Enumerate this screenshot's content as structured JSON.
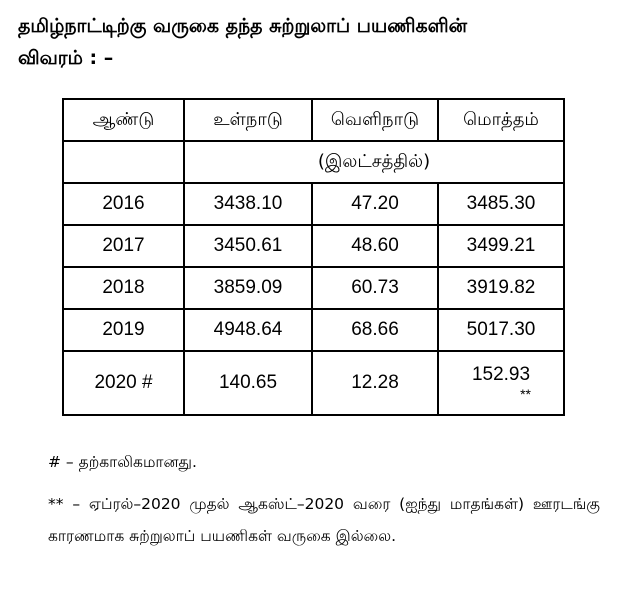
{
  "heading": {
    "line1": "தமிழ்நாட்டிற்கு வருகை தந்த சுற்றுலாப் பயணிகளின்",
    "line2": "விவரம் : –"
  },
  "table": {
    "headers": [
      "ஆண்டு",
      "உள்நாடு",
      "வெளிநாடு",
      "மொத்தம்"
    ],
    "unit": "(இலட்சத்தில்)",
    "rows": [
      {
        "year": "2016",
        "domestic": "3438.10",
        "foreign": "47.20",
        "total": "3485.30"
      },
      {
        "year": "2017",
        "domestic": "3450.61",
        "foreign": "48.60",
        "total": "3499.21"
      },
      {
        "year": "2018",
        "domestic": "3859.09",
        "foreign": "60.73",
        "total": "3919.82"
      },
      {
        "year": "2019",
        "domestic": "4948.64",
        "foreign": "68.66",
        "total": "5017.30"
      },
      {
        "year": "2020 #",
        "domestic": "140.65",
        "foreign": "12.28",
        "total": "152.93",
        "total_mark": "**"
      }
    ]
  },
  "notes": {
    "provisional": "# – தற்காலிகமானது.",
    "covid": "** – ஏப்ரல்–2020 முதல் ஆகஸ்ட்–2020 வரை (ஐந்து மாதங்கள்) ஊரடங்கு காரணமாக சுற்றுலாப் பயணிகள் வருகை இல்லை."
  }
}
